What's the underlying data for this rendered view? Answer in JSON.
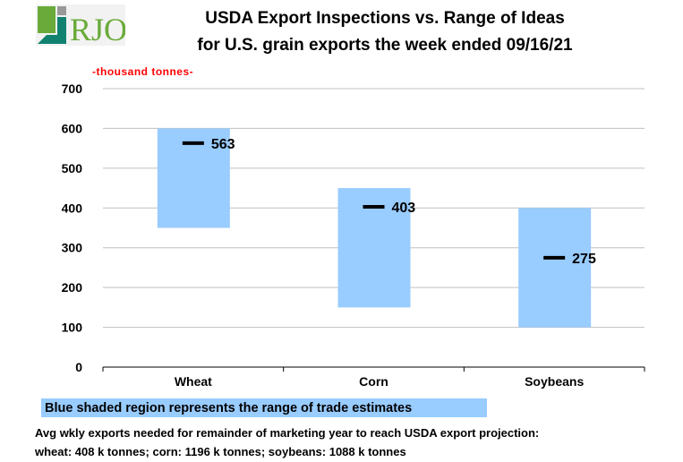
{
  "logo_text": "RJO",
  "chart_data": {
    "type": "range-bar",
    "title": "USDA Export Inspections vs. Range of Ideas",
    "subtitle": "for U.S. grain exports the week ended 09/16/21",
    "ylabel": "-thousand  tonnes-",
    "ylim": [
      0,
      700
    ],
    "yticks": [
      0,
      100,
      200,
      300,
      400,
      500,
      600,
      700
    ],
    "grid": true,
    "categories": [
      "Wheat",
      "Corn",
      "Soybeans"
    ],
    "range_low": [
      350,
      150,
      100
    ],
    "range_high": [
      600,
      450,
      400
    ],
    "actual": [
      563,
      403,
      275
    ],
    "range_color": "#99ccff",
    "marker_color": "#000000"
  },
  "legend": "Blue shaded region represents the range of trade estimates",
  "note_line1": "Avg wkly exports needed for remainder of marketing year to reach USDA export projection:",
  "note_line2": "wheat: 408 k tonnes; corn: 1196 k tonnes; soybeans: 1088 k tonnes"
}
